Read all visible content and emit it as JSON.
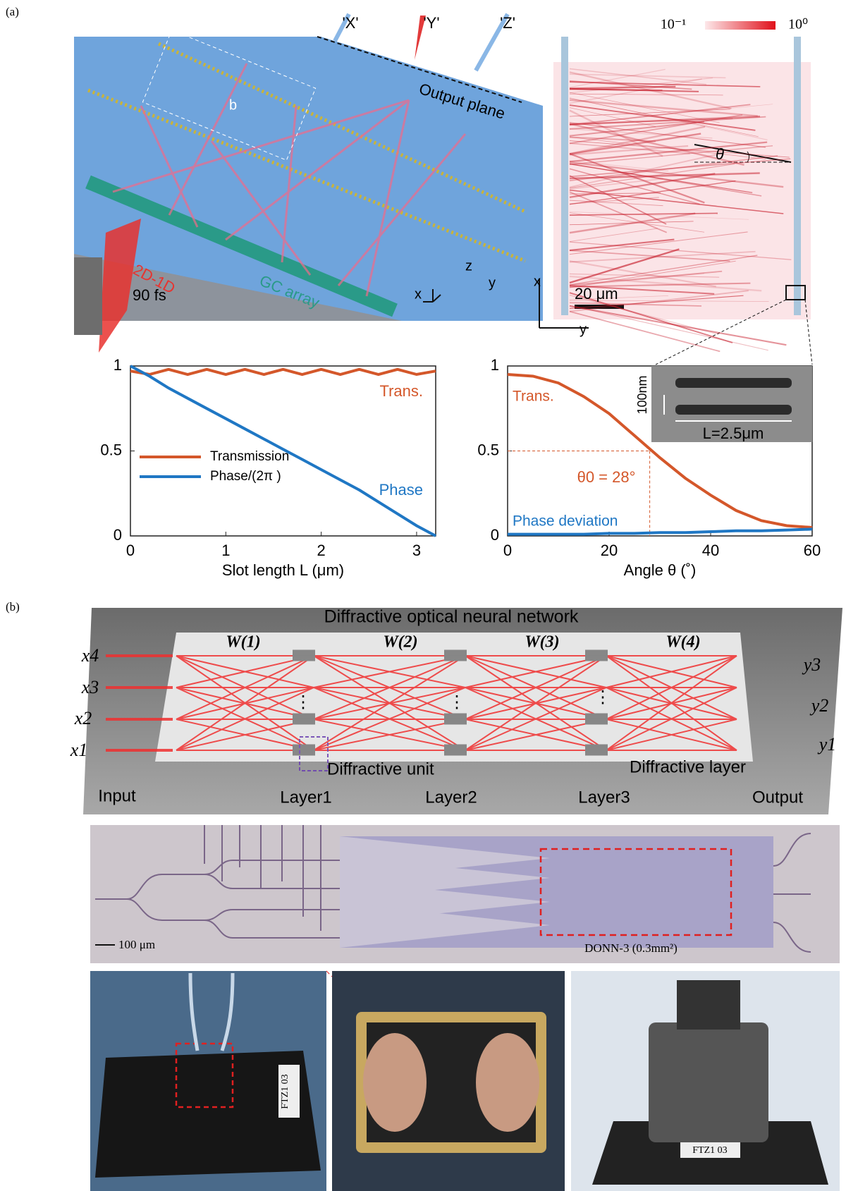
{
  "labels": {
    "a": "(a)",
    "b": "(b)"
  },
  "panel_a": {
    "illustration": {
      "ports": [
        "'X'",
        "'Y'",
        "'Z'"
      ],
      "output_plane": "Output plane",
      "box_label": "b",
      "conversion": "2D-1D",
      "pulse": "90 fs",
      "gc_array": "GC array",
      "axes": [
        "x",
        "y",
        "z"
      ]
    },
    "field_map": {
      "scale_min": "10⁻¹",
      "scale_max": "10⁰",
      "angle": "θ",
      "scale_bar": "20 μm",
      "axes": [
        "x",
        "y"
      ]
    },
    "inset": {
      "width": "100nm",
      "length": "L=2.5μm"
    }
  },
  "chart_data": [
    {
      "type": "line",
      "xlabel": "Slot length L (μm)",
      "x": [
        0,
        0.2,
        0.4,
        0.6,
        0.8,
        1.0,
        1.2,
        1.4,
        1.6,
        1.8,
        2.0,
        2.2,
        2.4,
        2.6,
        2.8,
        3.0,
        3.2
      ],
      "series": [
        {
          "name": "Transmission",
          "color": "#d4572a",
          "values": [
            0.97,
            0.95,
            0.98,
            0.95,
            0.98,
            0.95,
            0.98,
            0.95,
            0.98,
            0.95,
            0.98,
            0.95,
            0.98,
            0.95,
            0.98,
            0.95,
            0.97
          ]
        },
        {
          "name": "Phase/(2π )",
          "color": "#1f77c4",
          "values": [
            1.0,
            0.94,
            0.87,
            0.81,
            0.75,
            0.69,
            0.63,
            0.57,
            0.51,
            0.45,
            0.39,
            0.33,
            0.27,
            0.2,
            0.13,
            0.06,
            0.0
          ]
        }
      ],
      "annotations": [
        "Trans.",
        "Phase"
      ],
      "xlim": [
        0,
        3.2
      ],
      "ylim": [
        0,
        1
      ],
      "xticks": [
        0,
        1,
        2,
        3
      ],
      "yticks": [
        0,
        0.5,
        1
      ],
      "legend": "lower-left"
    },
    {
      "type": "line",
      "xlabel": "Angle θ (˚)",
      "x": [
        0,
        5,
        10,
        15,
        20,
        25,
        30,
        35,
        40,
        45,
        50,
        55,
        60
      ],
      "series": [
        {
          "name": "Trans.",
          "color": "#d4572a",
          "values": [
            0.95,
            0.94,
            0.9,
            0.82,
            0.72,
            0.59,
            0.46,
            0.34,
            0.24,
            0.15,
            0.09,
            0.06,
            0.05
          ]
        },
        {
          "name": "Phase deviation",
          "color": "#1f77c4",
          "values": [
            0.01,
            0.01,
            0.01,
            0.01,
            0.015,
            0.015,
            0.02,
            0.02,
            0.025,
            0.03,
            0.03,
            0.035,
            0.04
          ]
        }
      ],
      "annotations": [
        "θ0 = 28°"
      ],
      "guide": {
        "x": 28,
        "y": 0.5
      },
      "xlim": [
        0,
        60
      ],
      "ylim": [
        0,
        1
      ],
      "xticks": [
        0,
        20,
        40,
        60
      ],
      "yticks": [
        0,
        0.5,
        1
      ]
    }
  ],
  "panel_b": {
    "diagram": {
      "title": "Diffractive optical neural network",
      "weights": [
        "W(1)",
        "W(2)",
        "W(3)",
        "W(4)"
      ],
      "inputs": [
        "x4",
        "x3",
        "x2",
        "x1"
      ],
      "outputs": [
        "y3",
        "y2",
        "y1"
      ],
      "unit": "Diffractive unit",
      "layer": "Diffractive layer",
      "stages": [
        "Input",
        "Layer1",
        "Layer2",
        "Layer3",
        "Output"
      ],
      "ellipsis": "⋮"
    },
    "micrograph": {
      "scale_bar": "100 μm",
      "device": "DONN-3  (0.3mm²)"
    },
    "photos": {
      "board_label": "FTZ1 03",
      "socket_label": "FTZ1 03"
    }
  }
}
